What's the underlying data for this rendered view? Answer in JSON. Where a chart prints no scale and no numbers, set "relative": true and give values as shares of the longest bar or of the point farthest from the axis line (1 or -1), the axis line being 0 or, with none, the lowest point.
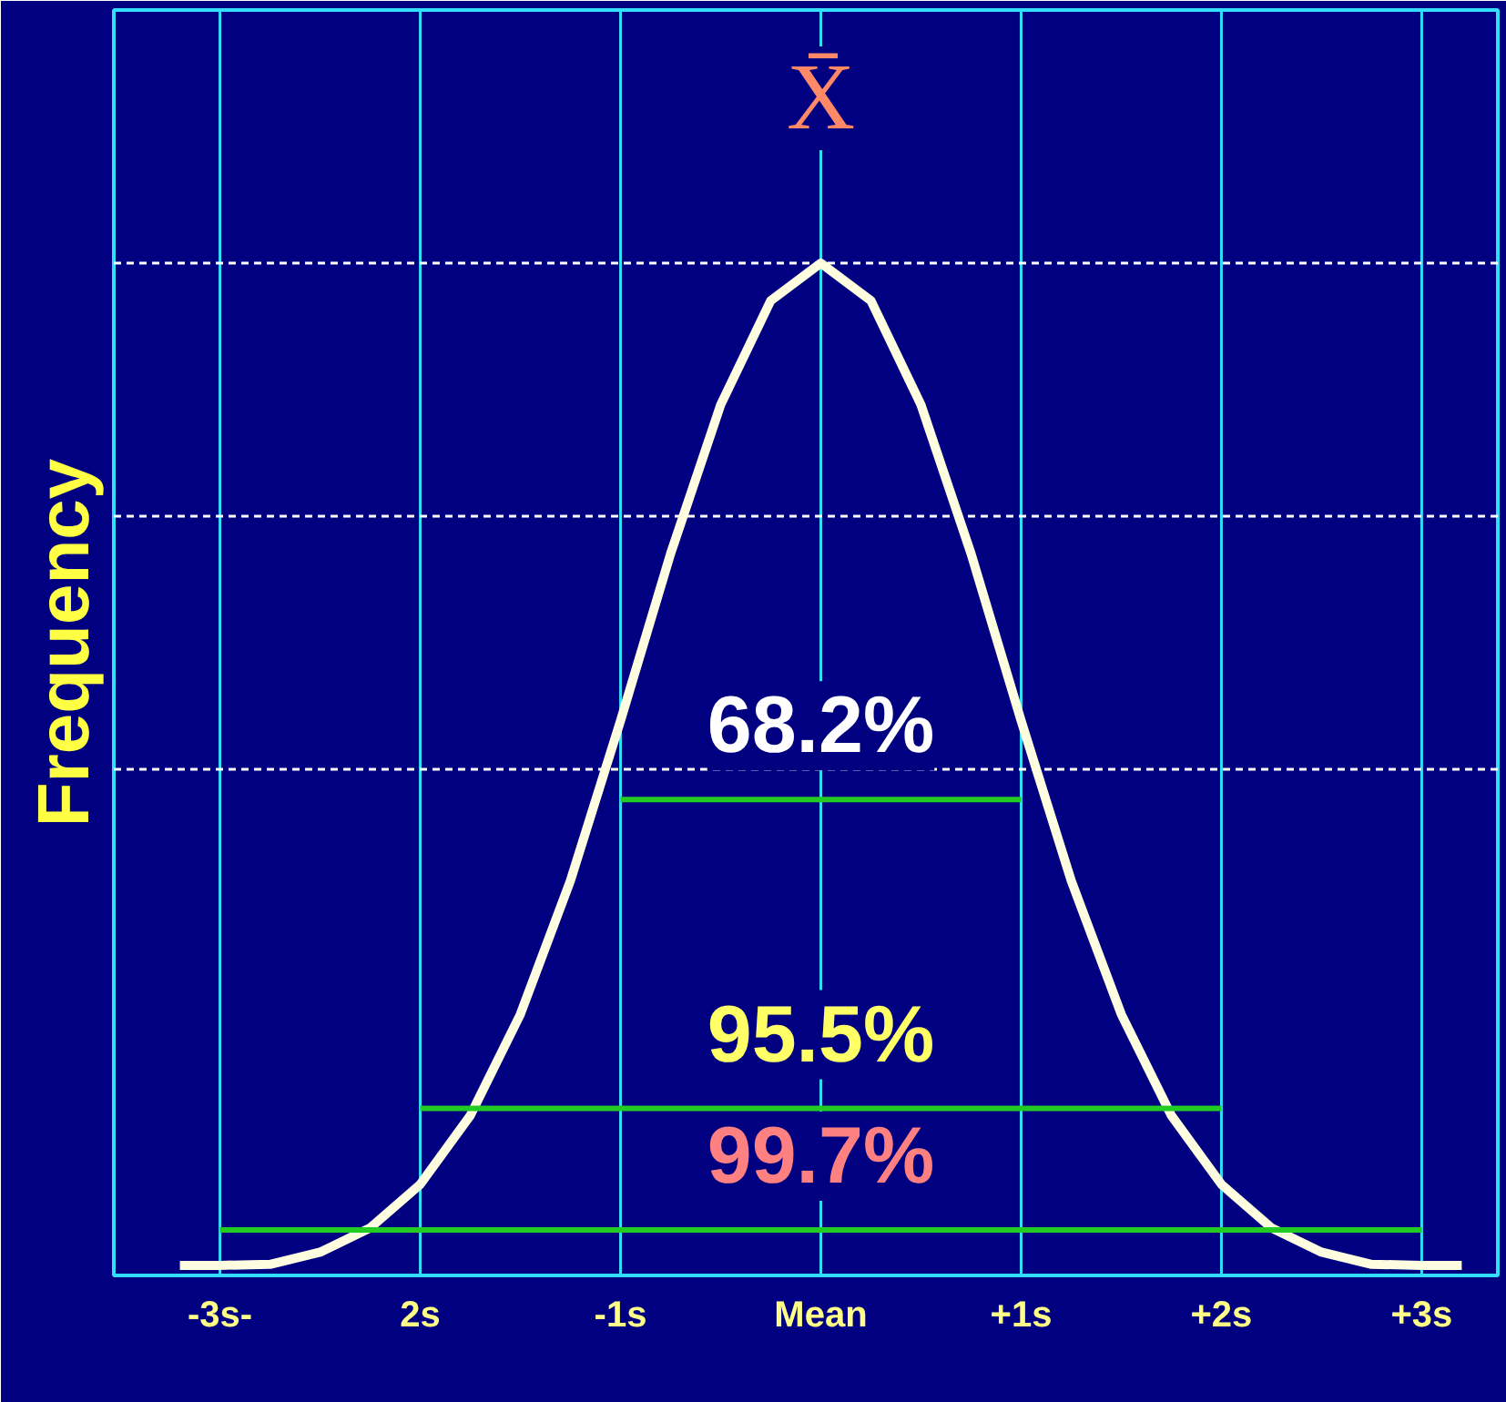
{
  "chart_data": {
    "type": "line",
    "relative": true,
    "title": "X̄",
    "ylabel": "Frequency",
    "x": [
      -3.2,
      -3,
      -2.75,
      -2.5,
      -2.25,
      -2,
      -1.75,
      -1.5,
      -1.25,
      -1,
      -0.75,
      -0.5,
      -0.25,
      0,
      0.25,
      0.5,
      0.75,
      1,
      1.25,
      1.5,
      1.75,
      2,
      2.25,
      2.5,
      2.75,
      3,
      3.2
    ],
    "xlim": [
      -3.53,
      3.38
    ],
    "xticks": [
      {
        "value": -3,
        "label": "-3s-"
      },
      {
        "value": -2,
        "label": "2s"
      },
      {
        "value": -1,
        "label": "-1s"
      },
      {
        "value": 0,
        "label": "Mean"
      },
      {
        "value": 1,
        "label": "+1s"
      },
      {
        "value": 2,
        "label": "+2s"
      },
      {
        "value": 3,
        "label": "+3s"
      }
    ],
    "series": [
      {
        "color": "#fffde0",
        "values": [
          0.01,
          0.01,
          0.011,
          0.023,
          0.047,
          0.09,
          0.158,
          0.258,
          0.39,
          0.548,
          0.713,
          0.86,
          0.963,
          1,
          0.963,
          0.86,
          0.713,
          0.548,
          0.39,
          0.258,
          0.158,
          0.09,
          0.047,
          0.023,
          0.011,
          0.01,
          0.01
        ]
      },
      {
        "color": "#22cc22",
        "x": [
          -1,
          1
        ],
        "values": [
          0.47,
          0.47
        ]
      },
      {
        "color": "#22cc22",
        "x": [
          -2,
          2
        ],
        "values": [
          0.165,
          0.165
        ]
      },
      {
        "color": "#22cc22",
        "x": [
          -3,
          3
        ],
        "values": [
          0.045,
          0.045
        ]
      }
    ],
    "ref_lines": [
      {
        "axis": "x",
        "value": -3,
        "color": "#33ddff"
      },
      {
        "axis": "x",
        "value": -2,
        "color": "#33ddff"
      },
      {
        "axis": "x",
        "value": -1,
        "color": "#33ddff"
      },
      {
        "axis": "x",
        "value": 0,
        "color": "#33ddff"
      },
      {
        "axis": "x",
        "value": 1,
        "color": "#33ddff"
      },
      {
        "axis": "x",
        "value": 2,
        "color": "#33ddff"
      },
      {
        "axis": "x",
        "value": 3,
        "color": "#33ddff"
      },
      {
        "axis": "y",
        "value": 1,
        "color": "#ffffff",
        "line_style": "dashed"
      },
      {
        "axis": "y",
        "value": 0.75,
        "color": "#ffffff",
        "line_style": "dashed"
      },
      {
        "axis": "y",
        "value": 0.5,
        "color": "#ffffff",
        "line_style": "dashed"
      }
    ],
    "annotations": [
      "68.2%",
      "95.5%",
      "99.7%"
    ]
  }
}
